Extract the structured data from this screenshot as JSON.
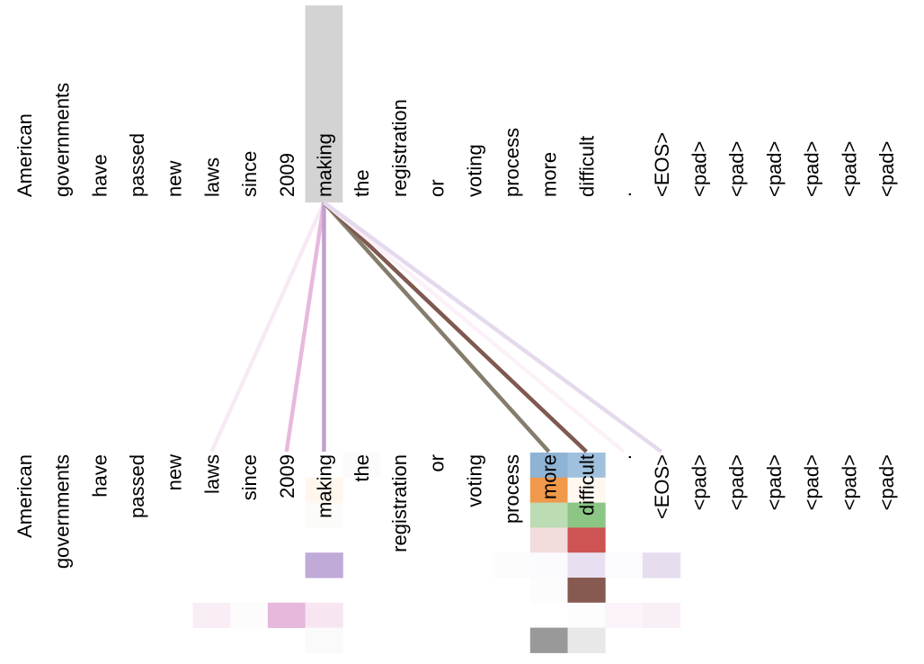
{
  "tokens": [
    "American",
    "governments",
    "have",
    "passed",
    "new",
    "laws",
    "since",
    "2009",
    "making",
    "the",
    "registration",
    "or",
    "voting",
    "process",
    "more",
    "difficult",
    ".",
    "<EOS>",
    "<pad>",
    "<pad>",
    "<pad>",
    "<pad>",
    "<pad>",
    "<pad>"
  ],
  "selected_token_index": 8,
  "selected_highlight_color": "#d3d3d3",
  "head_colors": [
    "#1f77b4",
    "#ff7f0e",
    "#2ca02c",
    "#d62728",
    "#9467bd",
    "#8c564b",
    "#e377c2",
    "#7f7f7f"
  ],
  "attention_lines": [
    {
      "target": 5,
      "color": "#f8eaf4"
    },
    {
      "target": 7,
      "color": "#e7b9dd"
    },
    {
      "target": 8,
      "color": "#c1a0cf"
    },
    {
      "target": 14,
      "color": "#857c6c"
    },
    {
      "target": 15,
      "color": "#7f5950"
    },
    {
      "target": 16,
      "color": "#fcf1f8"
    },
    {
      "target": 17,
      "color": "#e5d9ed"
    }
  ],
  "heatmap_cells": [
    {
      "row": 0,
      "col": 9,
      "color": "#fbfbfb"
    },
    {
      "row": 0,
      "col": 14,
      "color": "#8fb3d4"
    },
    {
      "row": 0,
      "col": 15,
      "color": "#a0c1dd"
    },
    {
      "row": 1,
      "col": 8,
      "color": "#fff7ee"
    },
    {
      "row": 1,
      "col": 14,
      "color": "#f0994a"
    },
    {
      "row": 1,
      "col": 15,
      "color": "#fff8f0"
    },
    {
      "row": 2,
      "col": 8,
      "color": "#fbfcf9"
    },
    {
      "row": 2,
      "col": 14,
      "color": "#bcdcb4"
    },
    {
      "row": 2,
      "col": 15,
      "color": "#8cc685"
    },
    {
      "row": 3,
      "col": 14,
      "color": "#f3dcdc"
    },
    {
      "row": 3,
      "col": 15,
      "color": "#cd5452"
    },
    {
      "row": 4,
      "col": 8,
      "color": "#c0aad8"
    },
    {
      "row": 4,
      "col": 13,
      "color": "#fcfcfd"
    },
    {
      "row": 4,
      "col": 14,
      "color": "#fafaff"
    },
    {
      "row": 4,
      "col": 15,
      "color": "#e8e0f1"
    },
    {
      "row": 4,
      "col": 16,
      "color": "#fcfbfd"
    },
    {
      "row": 4,
      "col": 17,
      "color": "#e6ddef"
    },
    {
      "row": 5,
      "col": 14,
      "color": "#fcfcfc"
    },
    {
      "row": 5,
      "col": 15,
      "color": "#875a51"
    },
    {
      "row": 6,
      "col": 5,
      "color": "#f9eef6"
    },
    {
      "row": 6,
      "col": 6,
      "color": "#fdfcfd"
    },
    {
      "row": 6,
      "col": 7,
      "color": "#e6b8dc"
    },
    {
      "row": 6,
      "col": 8,
      "color": "#f7e6f2"
    },
    {
      "row": 6,
      "col": 15,
      "color": "#fefdfe"
    },
    {
      "row": 6,
      "col": 16,
      "color": "#fcf4fa"
    },
    {
      "row": 6,
      "col": 17,
      "color": "#f9eff7"
    },
    {
      "row": 7,
      "col": 8,
      "color": "#fafafa"
    },
    {
      "row": 7,
      "col": 14,
      "color": "#999999"
    },
    {
      "row": 7,
      "col": 15,
      "color": "#e8e8e8"
    }
  ]
}
